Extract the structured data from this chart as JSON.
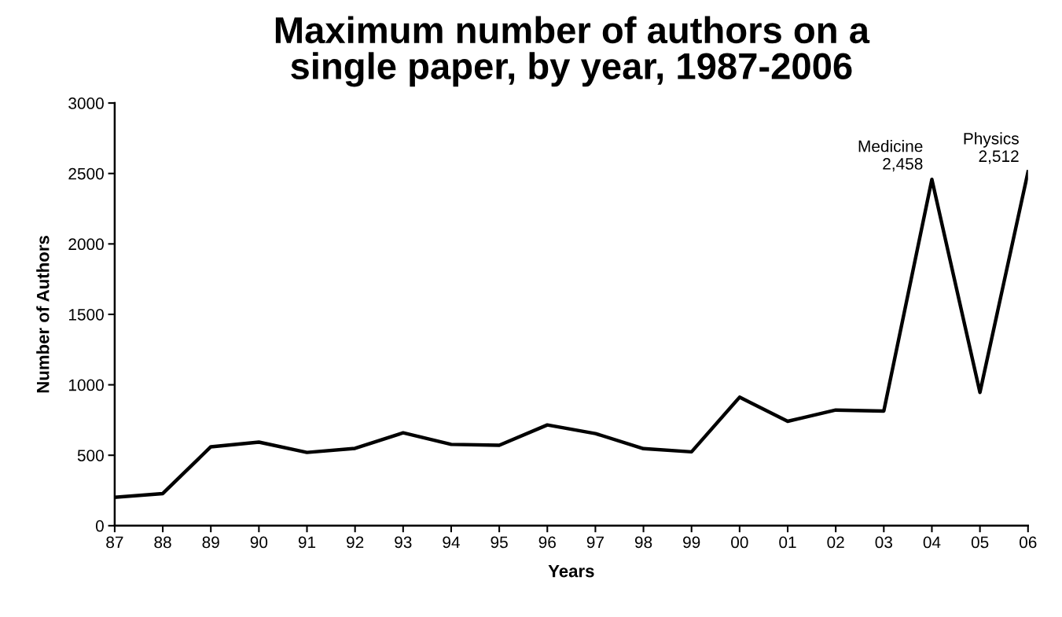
{
  "chart_data": {
    "type": "line",
    "title": "Maximum number of authors on a\nsingle paper, by year, 1987-2006",
    "xlabel": "Years",
    "ylabel": "Number of Authors",
    "categories": [
      "87",
      "88",
      "89",
      "90",
      "91",
      "92",
      "93",
      "94",
      "95",
      "96",
      "97",
      "98",
      "99",
      "00",
      "01",
      "02",
      "03",
      "04",
      "05",
      "06"
    ],
    "series": [
      {
        "color": "#000000",
        "values": [
          201,
          228,
          560,
          593,
          520,
          549,
          659,
          577,
          571,
          715,
          654,
          547,
          524,
          912,
          741,
          821,
          814,
          2458,
          946,
          2512
        ]
      }
    ],
    "ylim": [
      0,
      3000
    ],
    "yticks": [
      0,
      500,
      1000,
      1500,
      2000,
      2500,
      3000
    ],
    "annotations": [
      {
        "text": "Medicine\n2,458",
        "x": "04",
        "y": 2458
      },
      {
        "text": "Physics\n2,512",
        "x": "06",
        "y": 2512
      }
    ],
    "grid": false,
    "legend": false,
    "marker": "none",
    "line_style": "solid"
  }
}
